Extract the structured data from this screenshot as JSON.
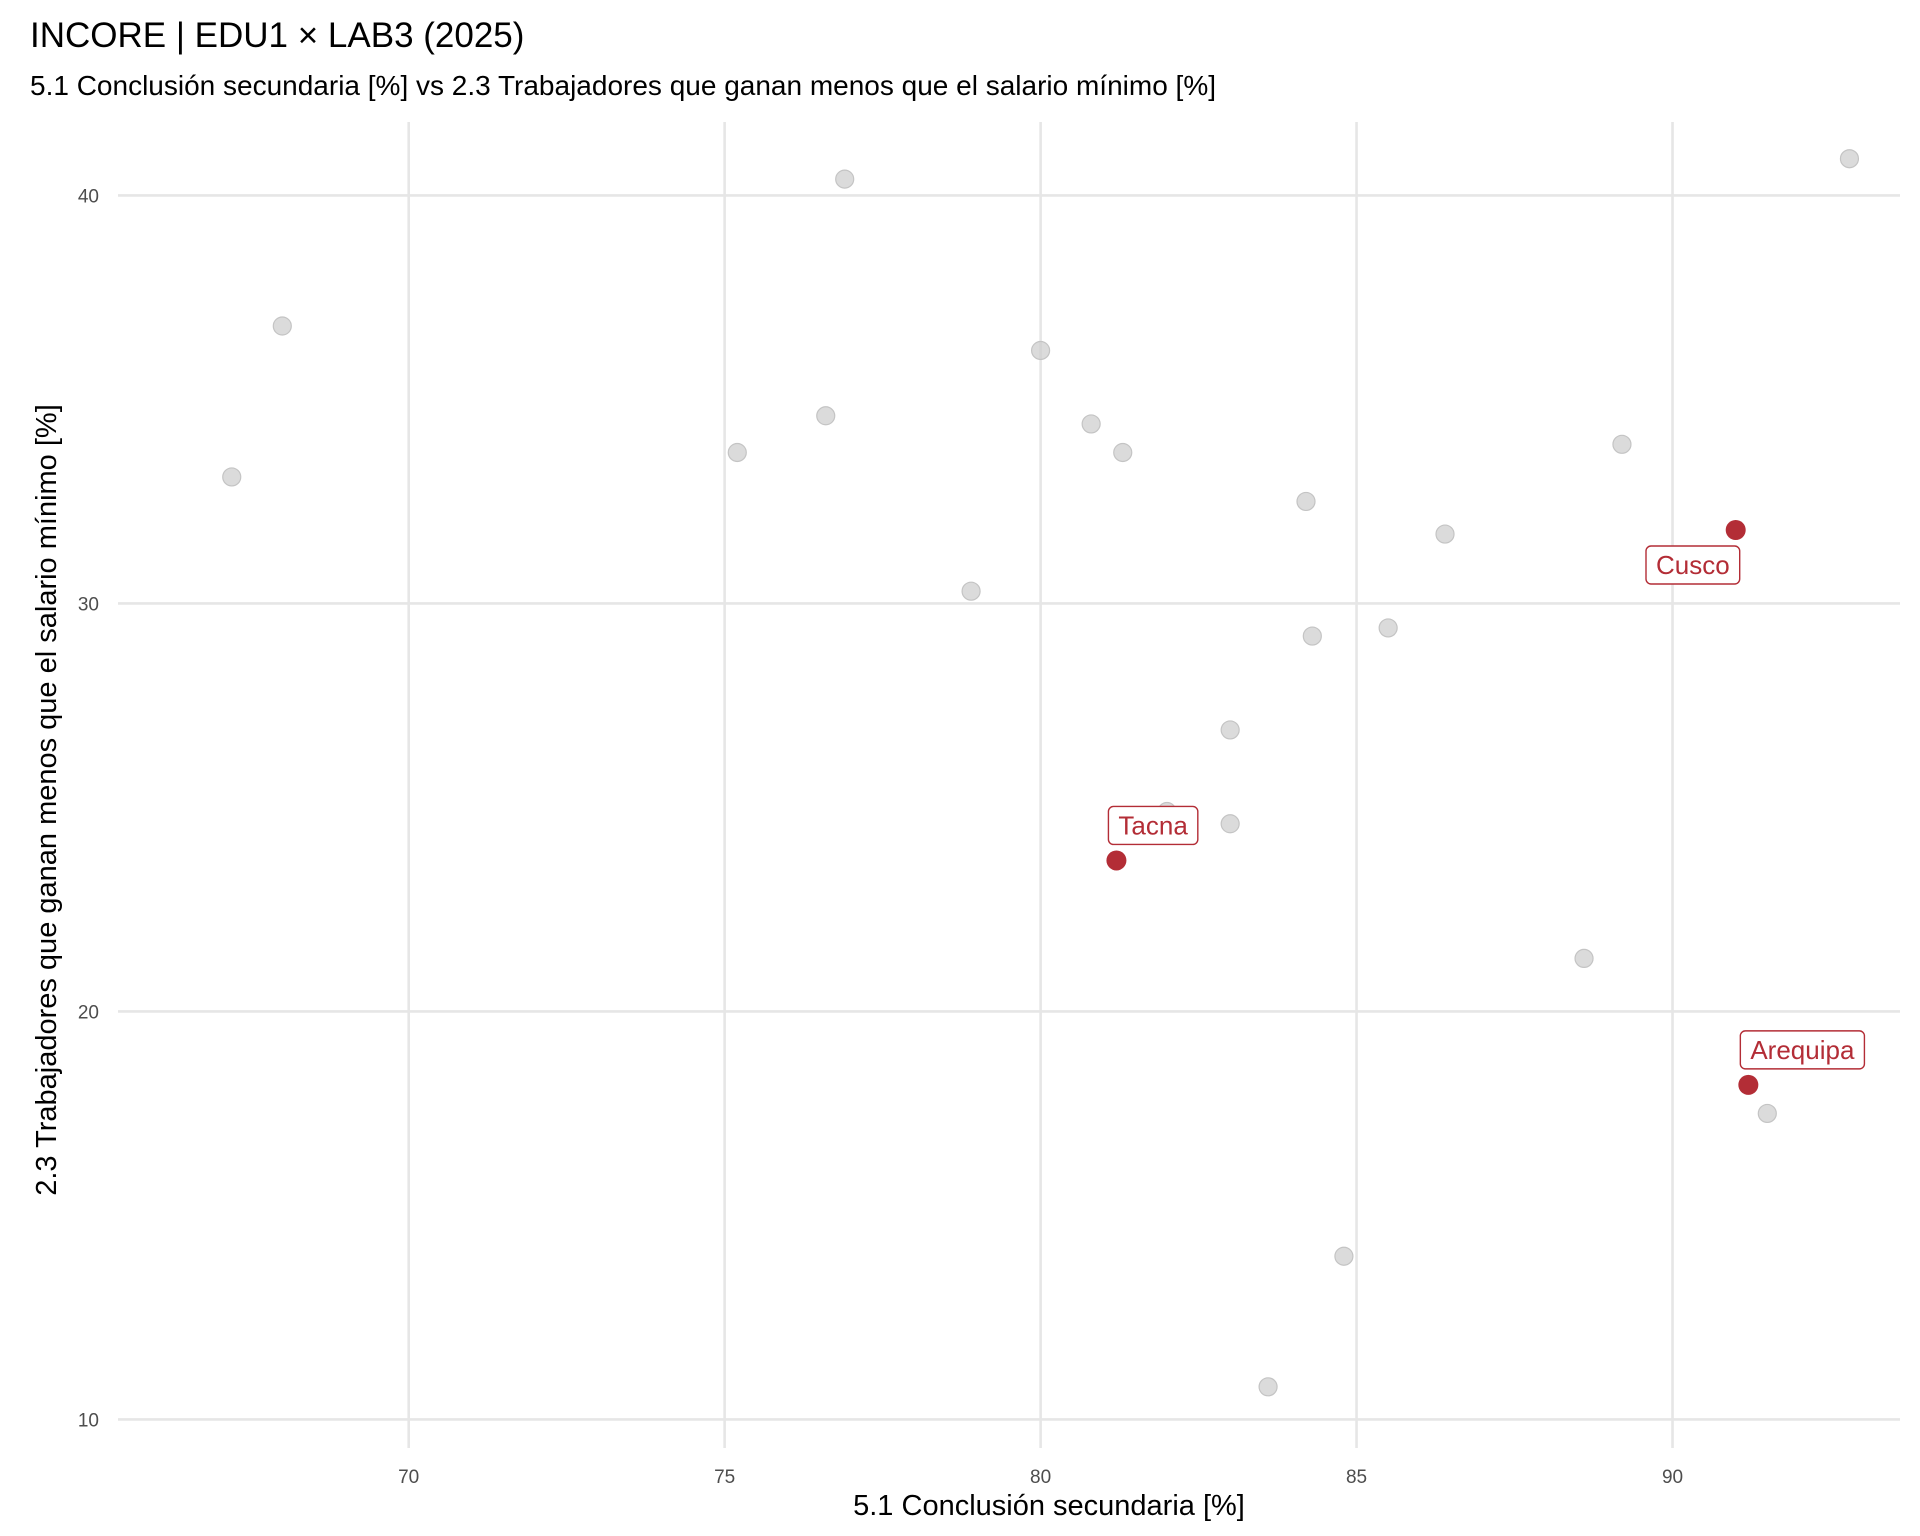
{
  "chart_data": {
    "type": "scatter",
    "title": "INCORE | EDU1 × LAB3 (2025)",
    "subtitle": "5.1 Conclusión secundaria [%]  vs  2.3 Trabajadores que ganan menos que el salario mínimo [%]",
    "xlabel": "5.1 Conclusión secundaria [%]",
    "ylabel": "2.3 Trabajadores que ganan menos que el salario mínimo [%]",
    "xlim": [
      65.4,
      93.6
    ],
    "ylim": [
      9.3,
      41.8
    ],
    "xticks": [
      70,
      75,
      80,
      85,
      90
    ],
    "yticks": [
      10,
      20,
      30,
      40
    ],
    "grid": true,
    "colors": {
      "points": "#cccccc",
      "highlight": "#b32d36",
      "grid": "#e6e6e6"
    },
    "points": [
      {
        "x": 67.2,
        "y": 33.1
      },
      {
        "x": 68.0,
        "y": 36.8
      },
      {
        "x": 75.2,
        "y": 33.7
      },
      {
        "x": 76.6,
        "y": 34.6
      },
      {
        "x": 76.9,
        "y": 40.4
      },
      {
        "x": 78.9,
        "y": 30.3
      },
      {
        "x": 80.0,
        "y": 36.2
      },
      {
        "x": 80.8,
        "y": 34.4
      },
      {
        "x": 81.3,
        "y": 33.7
      },
      {
        "x": 82.0,
        "y": 24.9
      },
      {
        "x": 83.0,
        "y": 26.9
      },
      {
        "x": 83.0,
        "y": 24.6
      },
      {
        "x": 83.6,
        "y": 10.8
      },
      {
        "x": 84.2,
        "y": 32.5
      },
      {
        "x": 84.3,
        "y": 29.2
      },
      {
        "x": 84.8,
        "y": 14.0
      },
      {
        "x": 85.5,
        "y": 29.4
      },
      {
        "x": 86.4,
        "y": 31.7
      },
      {
        "x": 88.6,
        "y": 21.3
      },
      {
        "x": 89.2,
        "y": 33.9
      },
      {
        "x": 91.5,
        "y": 17.5
      },
      {
        "x": 92.8,
        "y": 40.9
      }
    ],
    "highlighted": [
      {
        "label": "Cusco",
        "x": 91.0,
        "y": 31.8,
        "label_pos": "below-left"
      },
      {
        "label": "Tacna",
        "x": 81.2,
        "y": 23.7,
        "label_pos": "above-right"
      },
      {
        "label": "Arequipa",
        "x": 91.2,
        "y": 18.2,
        "label_pos": "above-right"
      }
    ]
  }
}
